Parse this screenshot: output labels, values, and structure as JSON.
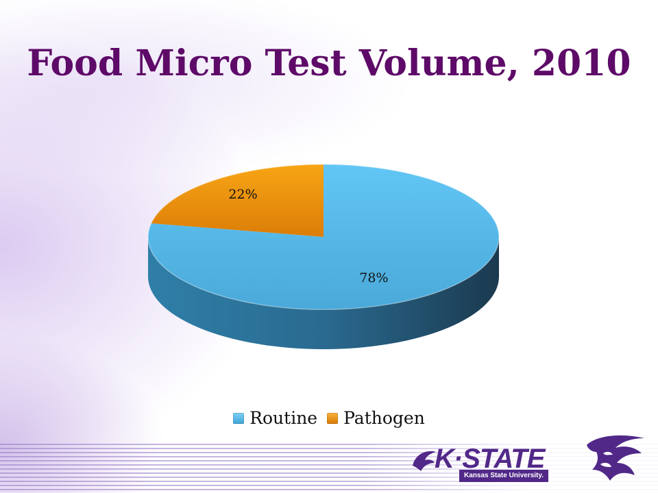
{
  "slide": {
    "title": "Food Micro Test Volume, 2010"
  },
  "chart_data": {
    "type": "pie",
    "title": "Food Micro Test Volume, 2010",
    "categories": [
      "Routine",
      "Pathogen"
    ],
    "values": [
      78,
      22
    ],
    "labels": [
      "78%",
      "22%"
    ],
    "legend_position": "bottom",
    "colors": [
      "#5bbde8",
      "#f39a12"
    ]
  },
  "logo": {
    "wordmark": "K·STATE",
    "subtitle": "Kansas State University."
  },
  "colors": {
    "title": "#5e0a68",
    "brand_purple": "#512888"
  }
}
